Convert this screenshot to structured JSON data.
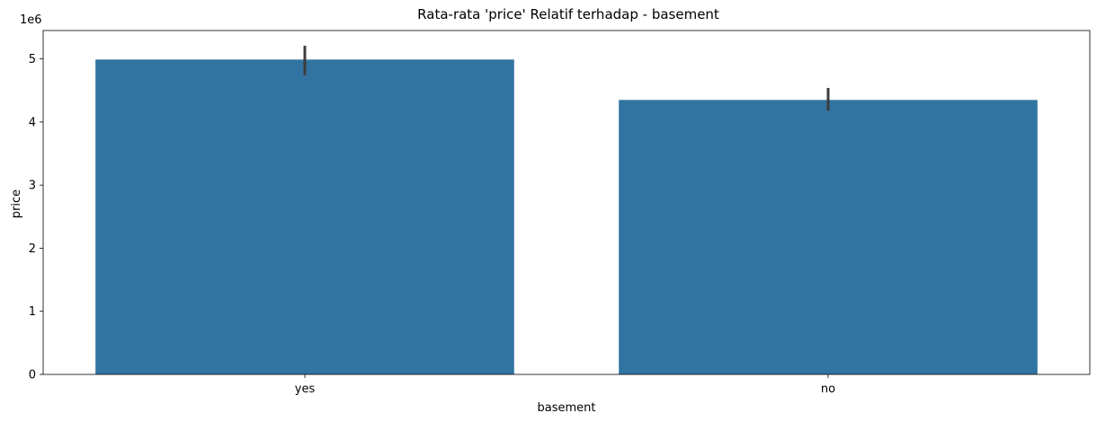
{
  "chart_data": {
    "type": "bar",
    "title": "Rata-rata 'price' Relatif terhadap - basement",
    "xlabel": "basement",
    "ylabel": "price",
    "y_offset_label": "1e6",
    "categories": [
      "yes",
      "no"
    ],
    "values": [
      4990000,
      4350000
    ],
    "error_bars": [
      {
        "low": 4740000,
        "high": 5210000
      },
      {
        "low": 4180000,
        "high": 4540000
      }
    ],
    "ylim": [
      0,
      5450000
    ],
    "yticks": [
      0,
      1000000,
      2000000,
      3000000,
      4000000,
      5000000
    ],
    "ytick_labels": [
      "0",
      "1",
      "2",
      "3",
      "4",
      "5"
    ],
    "grid": false,
    "bar_color": "#3274a1",
    "error_color": "#3d3d3d"
  }
}
